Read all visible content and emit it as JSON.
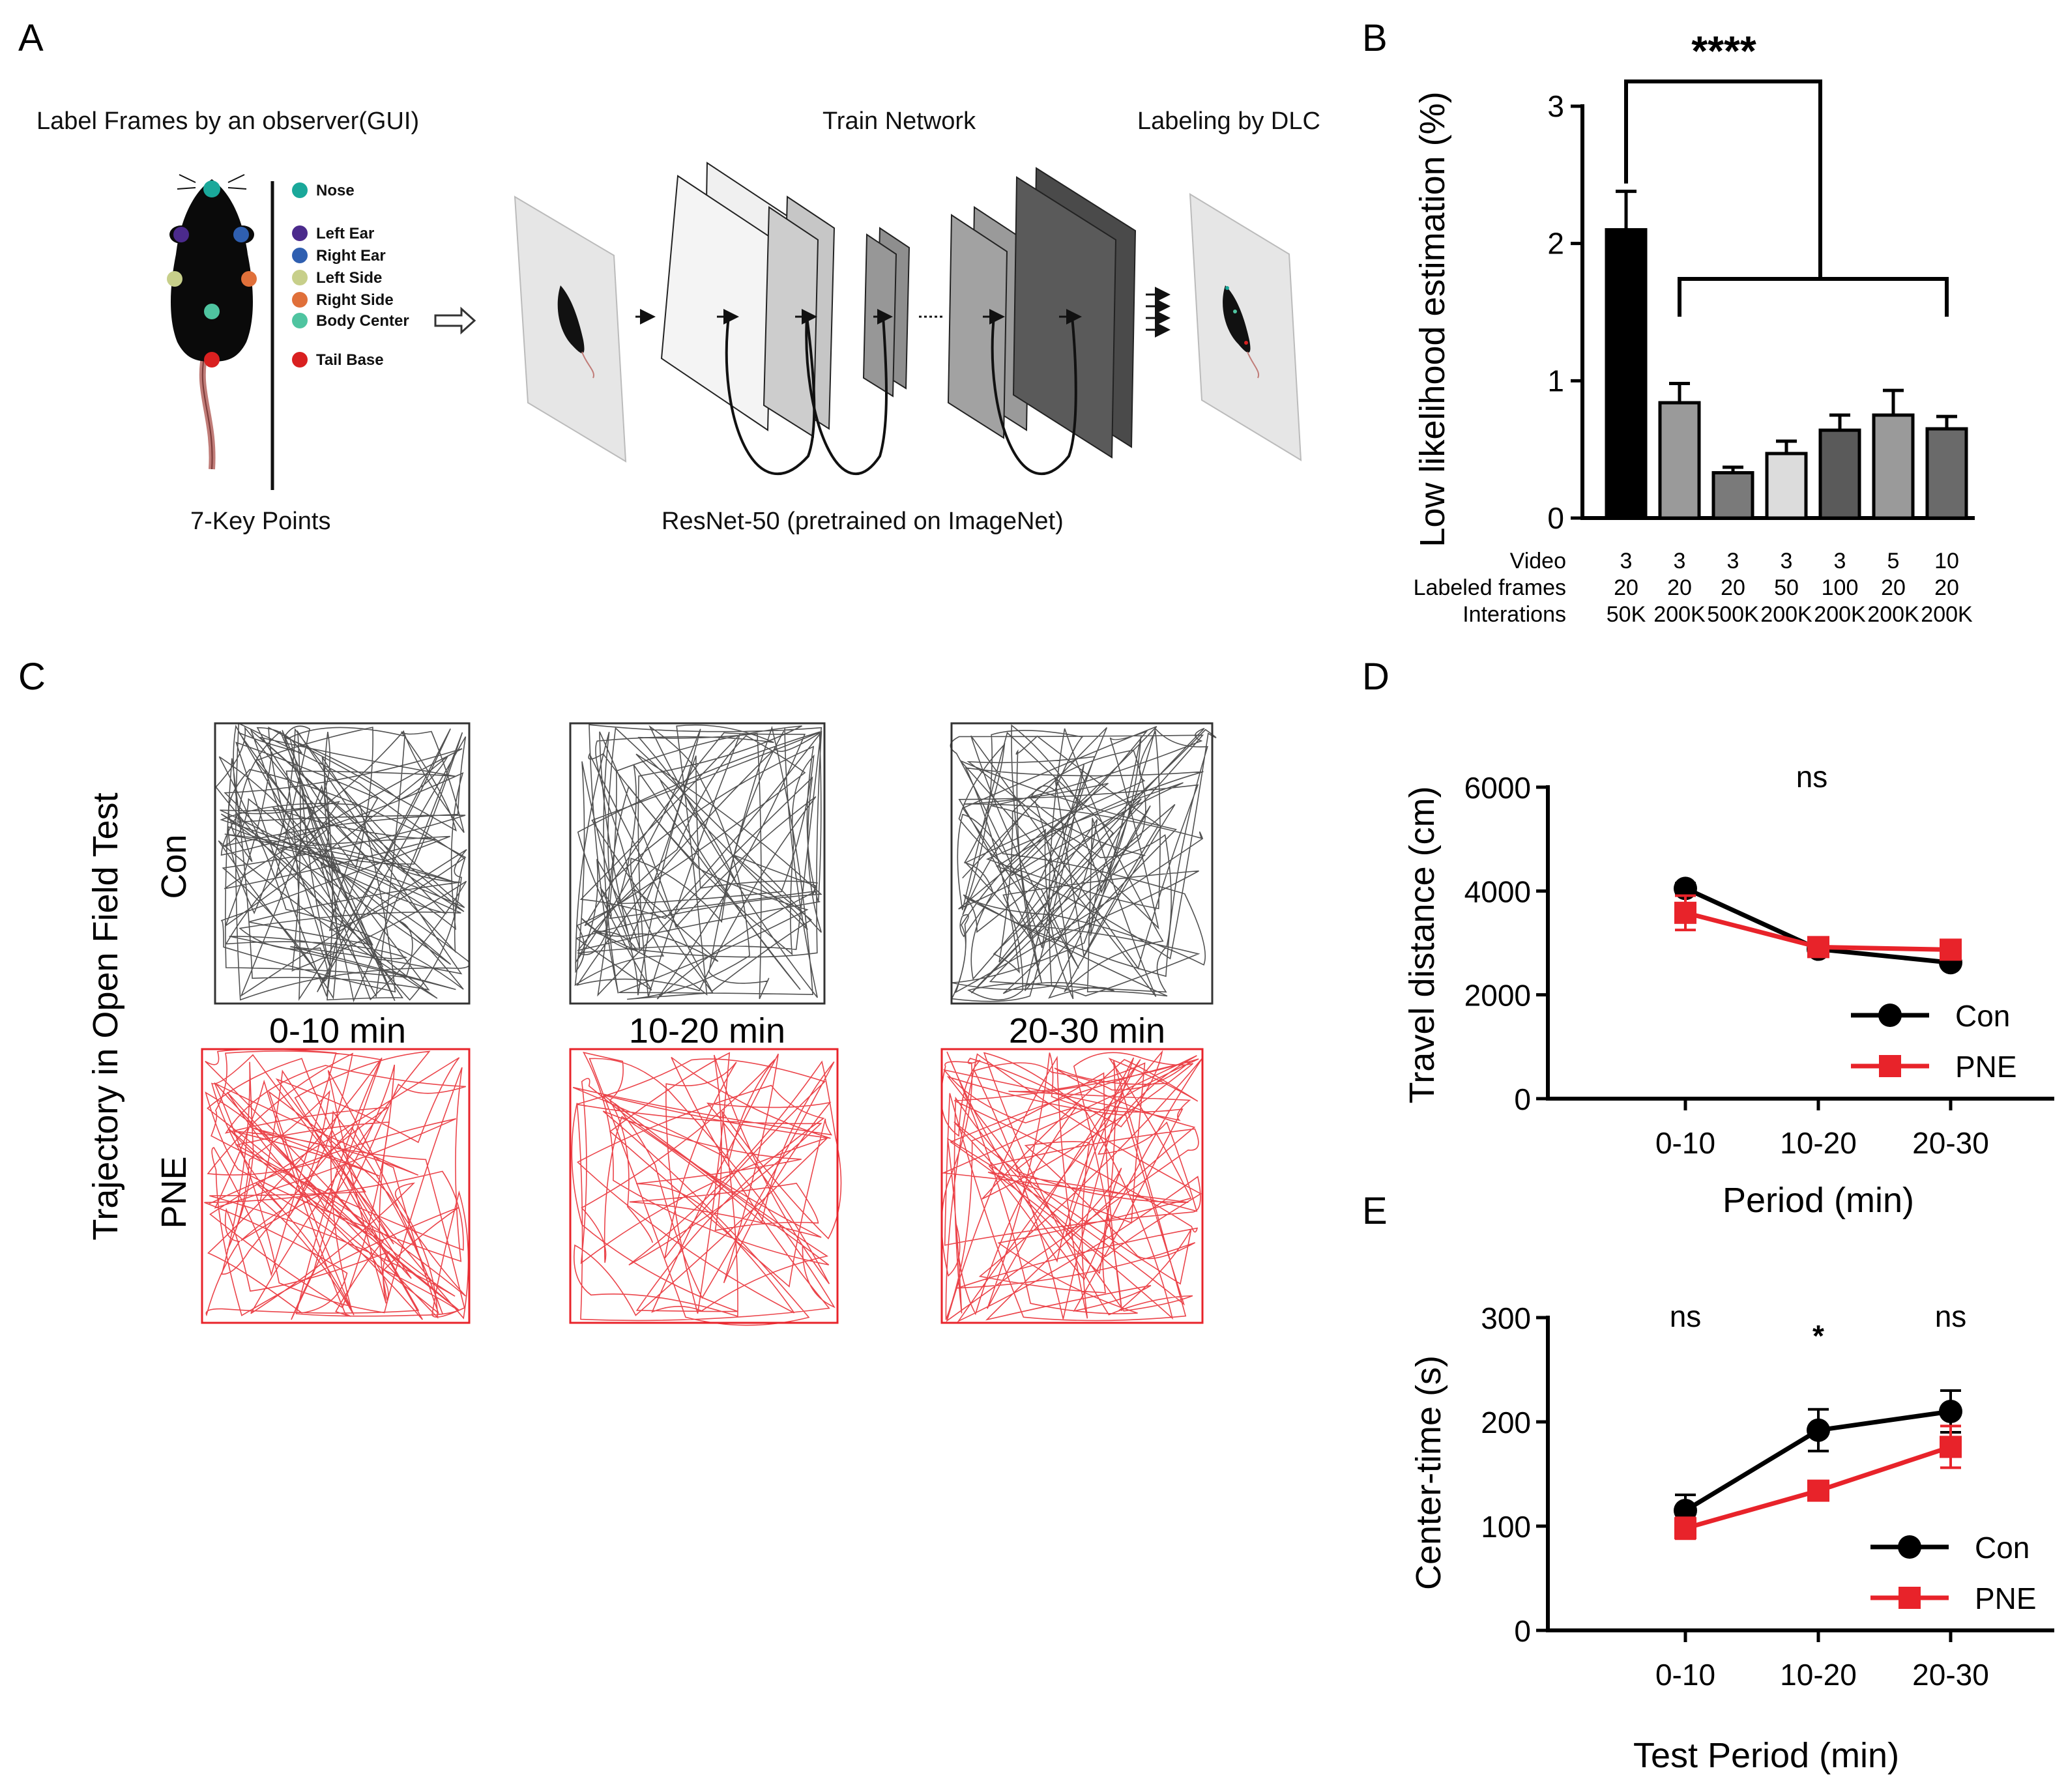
{
  "panels": {
    "a": "A",
    "b": "B",
    "c": "C",
    "d": "D",
    "e": "E"
  },
  "panel_a": {
    "label_frames_title": "Label Frames by an observer(GUI)",
    "train_title": "Train  Network",
    "dlc_title": "Labeling by DLC",
    "key_points_caption": "7-Key Points",
    "resnet_caption": "ResNet-50 (pretrained on ImageNet)",
    "keypoints": [
      {
        "name": "Nose",
        "color": "#1aa89a"
      },
      {
        "name": "Left Ear",
        "color": "#4b2a8c"
      },
      {
        "name": "Right Ear",
        "color": "#2f5fb0"
      },
      {
        "name": "Left Side",
        "color": "#c7cf8a"
      },
      {
        "name": "Right Side",
        "color": "#e0703a"
      },
      {
        "name": "Body Center",
        "color": "#4fc4a0"
      },
      {
        "name": "Tail Base",
        "color": "#d92020"
      }
    ]
  },
  "panel_c": {
    "ylabel": "Trajectory in Open Field Test",
    "row_labels": [
      "Con",
      "PNE"
    ],
    "period_labels": [
      "0-10 min",
      "10-20 min",
      "20-30 min"
    ],
    "colors": {
      "Con": "#333333",
      "PNE": "#e8232a"
    }
  },
  "chart_data": [
    {
      "panel": "B",
      "type": "bar",
      "ylabel": "Low likelihood estimation (%)",
      "ylim": [
        0,
        3
      ],
      "yticks": [
        0,
        1,
        2,
        3
      ],
      "values": [
        2.1,
        0.84,
        0.33,
        0.47,
        0.64,
        0.75,
        0.65
      ],
      "errors": [
        0.28,
        0.14,
        0.04,
        0.09,
        0.11,
        0.18,
        0.09
      ],
      "bar_colors": [
        "#000000",
        "#9a9a9a",
        "#7a7a7a",
        "#dcdcdc",
        "#5a5a5a",
        "#9a9a9a",
        "#6a6a6a"
      ],
      "row_labels": [
        "Video",
        "Labeled frames",
        "Interations"
      ],
      "video": [
        "3",
        "3",
        "3",
        "3",
        "3",
        "5",
        "10"
      ],
      "labeled_frames": [
        "20",
        "20",
        "20",
        "50",
        "100",
        "20",
        "20"
      ],
      "iterations": [
        "50K",
        "200K",
        "500K",
        "200K",
        "200K",
        "200K",
        "200K"
      ],
      "significance": "****"
    },
    {
      "panel": "D",
      "type": "line",
      "ylabel": "Travel distance (cm)",
      "xlabel": "Period (min)",
      "categories": [
        "0-10",
        "10-20",
        "20-30"
      ],
      "ylim": [
        0,
        6000
      ],
      "yticks": [
        0,
        2000,
        4000,
        6000
      ],
      "series": [
        {
          "name": "Con",
          "color": "#000000",
          "values": [
            4050,
            2880,
            2620
          ],
          "errors": [
            100,
            80,
            80
          ]
        },
        {
          "name": "PNE",
          "color": "#e8232a",
          "values": [
            3580,
            2920,
            2870
          ],
          "errors": [
            330,
            100,
            100
          ]
        }
      ],
      "annotations": [
        "ns"
      ]
    },
    {
      "panel": "E",
      "type": "line",
      "ylabel": "Center-time (s)",
      "xlabel": "Test Period  (min)",
      "categories": [
        "0-10",
        "10-20",
        "20-30"
      ],
      "ylim": [
        0,
        300
      ],
      "yticks": [
        0,
        100,
        200,
        300
      ],
      "series": [
        {
          "name": "Con",
          "color": "#000000",
          "values": [
            115,
            192,
            210
          ],
          "errors": [
            15,
            20,
            20
          ]
        },
        {
          "name": "PNE",
          "color": "#e8232a",
          "values": [
            98,
            134,
            176
          ],
          "errors": [
            10,
            8,
            20
          ]
        }
      ],
      "annotations": [
        "ns",
        "*",
        "ns"
      ]
    }
  ]
}
